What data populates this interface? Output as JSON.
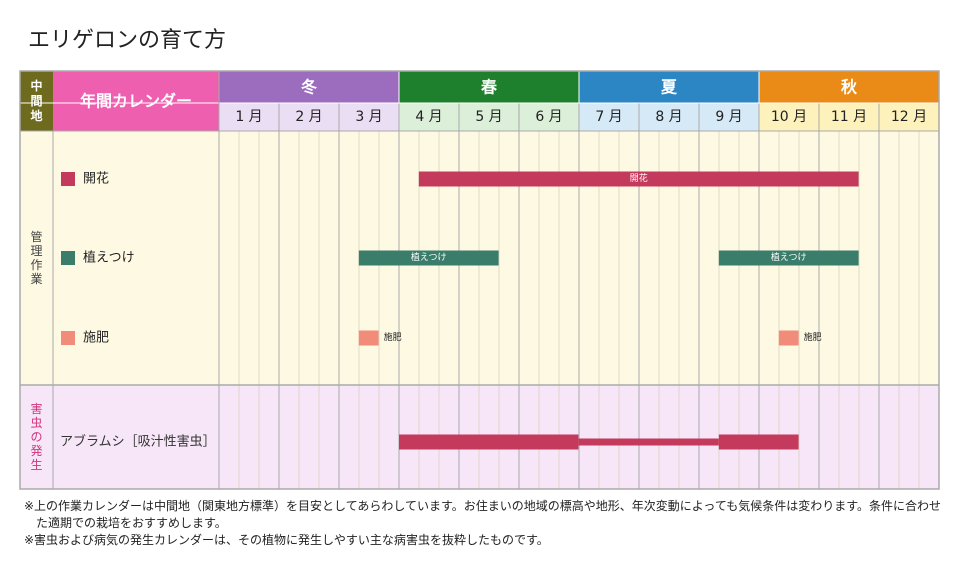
{
  "title": "エリゲロンの育て方",
  "header": {
    "region_label": "中間地",
    "calendar_label": "年間カレンダー"
  },
  "seasons": [
    {
      "label": "冬",
      "color": "#9c6cbf"
    },
    {
      "label": "春",
      "color": "#1e7f2c"
    },
    {
      "label": "夏",
      "color": "#2d86c4"
    },
    {
      "label": "秋",
      "color": "#ea8a17"
    }
  ],
  "months": [
    {
      "label": "1 月",
      "bg": "#e9def3"
    },
    {
      "label": "2 月",
      "bg": "#e9def3"
    },
    {
      "label": "3 月",
      "bg": "#e9def3"
    },
    {
      "label": "4 月",
      "bg": "#dcefd9"
    },
    {
      "label": "5 月",
      "bg": "#dcefd9"
    },
    {
      "label": "6 月",
      "bg": "#dcefd9"
    },
    {
      "label": "7 月",
      "bg": "#d6e9f6"
    },
    {
      "label": "8 月",
      "bg": "#d6e9f6"
    },
    {
      "label": "9 月",
      "bg": "#d6e9f6"
    },
    {
      "label": "10 月",
      "bg": "#fdf1bc"
    },
    {
      "label": "11 月",
      "bg": "#fdf1bc"
    },
    {
      "label": "12 月",
      "bg": "#fdf1bc"
    }
  ],
  "sections": {
    "management": {
      "label": "管理作業",
      "bg": "#fdf9e3",
      "header_bg": "#fbf6dc"
    },
    "pests": {
      "label": "害虫の発生",
      "bg": "#f6e6f7",
      "header_bg": "#f6e6f7",
      "label_color": "#d2357e"
    }
  },
  "colors": {
    "header_green": "#6e6a1e",
    "header_pink": "#ef5fb0",
    "grid_line": "#d7d2bd",
    "border": "#aaaaaa"
  },
  "chart_data": {
    "type": "gantt",
    "x_axis": "month",
    "rows": [
      {
        "section": "management",
        "label": "開花",
        "color": "#c43a5d",
        "bars": [
          {
            "start": 4.33,
            "end": 11.66,
            "label": "開花",
            "label_pos": "inside"
          }
        ]
      },
      {
        "section": "management",
        "label": "植えつけ",
        "color": "#3a7d6a",
        "bars": [
          {
            "start": 3.33,
            "end": 5.66,
            "label": "植えつけ",
            "label_pos": "inside"
          },
          {
            "start": 9.33,
            "end": 11.66,
            "label": "植えつけ",
            "label_pos": "inside"
          }
        ]
      },
      {
        "section": "management",
        "label": "施肥",
        "color": "#f28c7a",
        "bars": [
          {
            "start": 3.33,
            "end": 3.66,
            "label": "施肥",
            "label_pos": "right"
          },
          {
            "start": 10.33,
            "end": 10.66,
            "label": "施肥",
            "label_pos": "right"
          }
        ]
      },
      {
        "section": "pests",
        "label": "アブラムシ［吸汁性害虫］",
        "color": "#c43a5d",
        "bars": [
          {
            "start": 4.0,
            "end": 6.99,
            "thickness": "thick"
          },
          {
            "start": 6.99,
            "end": 9.33,
            "thickness": "thin"
          },
          {
            "start": 9.33,
            "end": 10.66,
            "thickness": "thick"
          }
        ]
      }
    ]
  },
  "notes": [
    "※上の作業カレンダーは中間地（関東地方標準）を目安としてあらわしています。お住まいの地域の標高や地形、年次変動によっても気候条件は変わります。条件に合わせた適期での栽培をおすすめします。",
    "※害虫および病気の発生カレンダーは、その植物に発生しやすい主な病害虫を抜粋したものです。"
  ]
}
